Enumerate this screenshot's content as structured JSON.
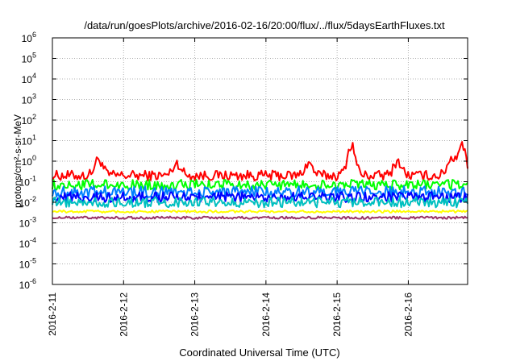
{
  "chart_data": {
    "type": "line",
    "title": "/data/run/goesPlots/archive/2016-02-16/20:00/flux/../flux/5daysEarthFluxes.txt",
    "xlabel": "Coordinated Universal Time (UTC)",
    "ylabel": "protons/cm²-s-sr-MeV",
    "yscale": "log",
    "ylim_exp": [
      -6,
      6
    ],
    "xlim_days": [
      "2016-02-11",
      "2016-02-16 20:00"
    ],
    "x_ticks": [
      "2016-2-11",
      "2016-2-12",
      "2016-2-13",
      "2016-2-14",
      "2016-2-15",
      "2016-2-16"
    ],
    "grid": true,
    "series": [
      {
        "color": "#ff0000",
        "level_exp": -0.7,
        "noise": 0.25,
        "spikes": [
          [
            0.65,
            0.8
          ],
          [
            1.75,
            0.6
          ],
          [
            3.6,
            0.6
          ],
          [
            4.2,
            1.5
          ],
          [
            4.85,
            0.7
          ],
          [
            5.6,
            0.8
          ],
          [
            5.75,
            1.5
          ]
        ]
      },
      {
        "color": "#00ff00",
        "level_exp": -1.15,
        "noise": 0.25,
        "spikes": []
      },
      {
        "color": "#0080ff",
        "level_exp": -1.5,
        "noise": 0.28,
        "spikes": []
      },
      {
        "color": "#0000ff",
        "level_exp": -1.75,
        "noise": 0.25,
        "spikes": []
      },
      {
        "color": "#00c0c0",
        "level_exp": -2.0,
        "noise": 0.25,
        "spikes": []
      },
      {
        "color": "#ffff00",
        "level_exp": -2.45,
        "noise": 0.06,
        "spikes": []
      },
      {
        "color": "#993366",
        "level_exp": -2.75,
        "noise": 0.06,
        "spikes": []
      }
    ]
  }
}
